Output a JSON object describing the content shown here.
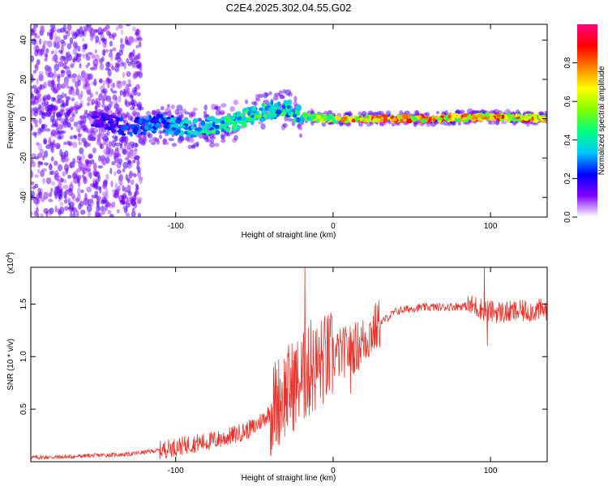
{
  "figure_title": "C2E4.2025.302.04.55.G02",
  "chart_data": [
    {
      "type": "heatmap",
      "title": "C2E4.2025.302.04.55.G02",
      "xlabel": "Height of straight line (km)",
      "ylabel": "Frequency (Hz)",
      "xlim": [
        -192,
        136
      ],
      "ylim": [
        -50,
        48
      ],
      "x_ticks": [
        -100,
        0,
        100
      ],
      "x_tick_labels": [
        "-100",
        "0",
        "100"
      ],
      "y_ticks": [
        -40,
        -20,
        0,
        20,
        40
      ],
      "y_tick_labels": [
        "-40",
        "-20",
        "0",
        "20",
        "40"
      ],
      "grid": false,
      "colorbar": {
        "label": "Normalized spectral amplitude",
        "range": [
          0,
          1
        ],
        "ticks": [
          0.0,
          0.2,
          0.4,
          0.6,
          0.8
        ],
        "tick_labels": [
          "0.0",
          "0.2",
          "0.4",
          "0.6",
          "0.8"
        ],
        "colormap": [
          "#ffffff",
          "#8000ff",
          "#0000ff",
          "#00c8ff",
          "#00ff80",
          "#80ff00",
          "#ffff00",
          "#ff8000",
          "#ff0000",
          "#ff0080"
        ]
      },
      "ridge": {
        "description_points_height_km": [
          -185,
          -150,
          -130,
          -110,
          -90,
          -70,
          -50,
          -30,
          -20,
          0,
          20,
          60,
          100,
          136
        ],
        "center_frequency_hz": [
          2,
          0,
          -5,
          -2,
          -5,
          -3,
          2,
          6,
          1,
          0,
          0,
          0,
          1,
          0
        ],
        "peak_amplitude": [
          0.15,
          0.2,
          0.3,
          0.35,
          0.45,
          0.5,
          0.55,
          0.5,
          0.55,
          0.75,
          0.95,
          0.95,
          0.9,
          0.9
        ]
      }
    },
    {
      "type": "line",
      "xlabel": "Height of straight line (km)",
      "ylabel": "SNR (10 * v/v)",
      "y_multiplier_label": "(x10",
      "y_multiplier_exponent": "4",
      "y_multiplier_close": ")",
      "xlim": [
        -192,
        136
      ],
      "ylim": [
        0,
        18500
      ],
      "x_ticks": [
        -100,
        0,
        100
      ],
      "x_tick_labels": [
        "-100",
        "0",
        "100"
      ],
      "y_ticks": [
        5000,
        10000,
        15000
      ],
      "y_tick_labels": [
        "0.5",
        "1.0",
        "1.5"
      ],
      "grid": false,
      "series": [
        {
          "name": "SNR",
          "color": "#e8342c",
          "x": [
            -192,
            -170,
            -150,
            -130,
            -110,
            -100,
            -90,
            -80,
            -70,
            -60,
            -50,
            -40,
            -35,
            -30,
            -25,
            -20,
            -15,
            -10,
            -5,
            0,
            5,
            10,
            15,
            20,
            25,
            30,
            40,
            50,
            60,
            70,
            80,
            90,
            95,
            100,
            110,
            120,
            136
          ],
          "y": [
            400,
            450,
            600,
            700,
            1100,
            1400,
            1700,
            1900,
            2200,
            2700,
            3300,
            4700,
            5800,
            6600,
            7300,
            7800,
            8500,
            9100,
            9700,
            10000,
            10300,
            10600,
            10900,
            11600,
            12400,
            13200,
            14300,
            14600,
            14700,
            14700,
            14800,
            14800,
            14500,
            14300,
            14200,
            14300,
            14500
          ]
        }
      ],
      "spikes": [
        {
          "x": -18,
          "y": 18500
        },
        {
          "x": -14,
          "y": 13500
        },
        {
          "x": 11,
          "y": 6500
        },
        {
          "x": 96,
          "y": 18500
        },
        {
          "x": 98,
          "y": 11000
        }
      ]
    }
  ]
}
